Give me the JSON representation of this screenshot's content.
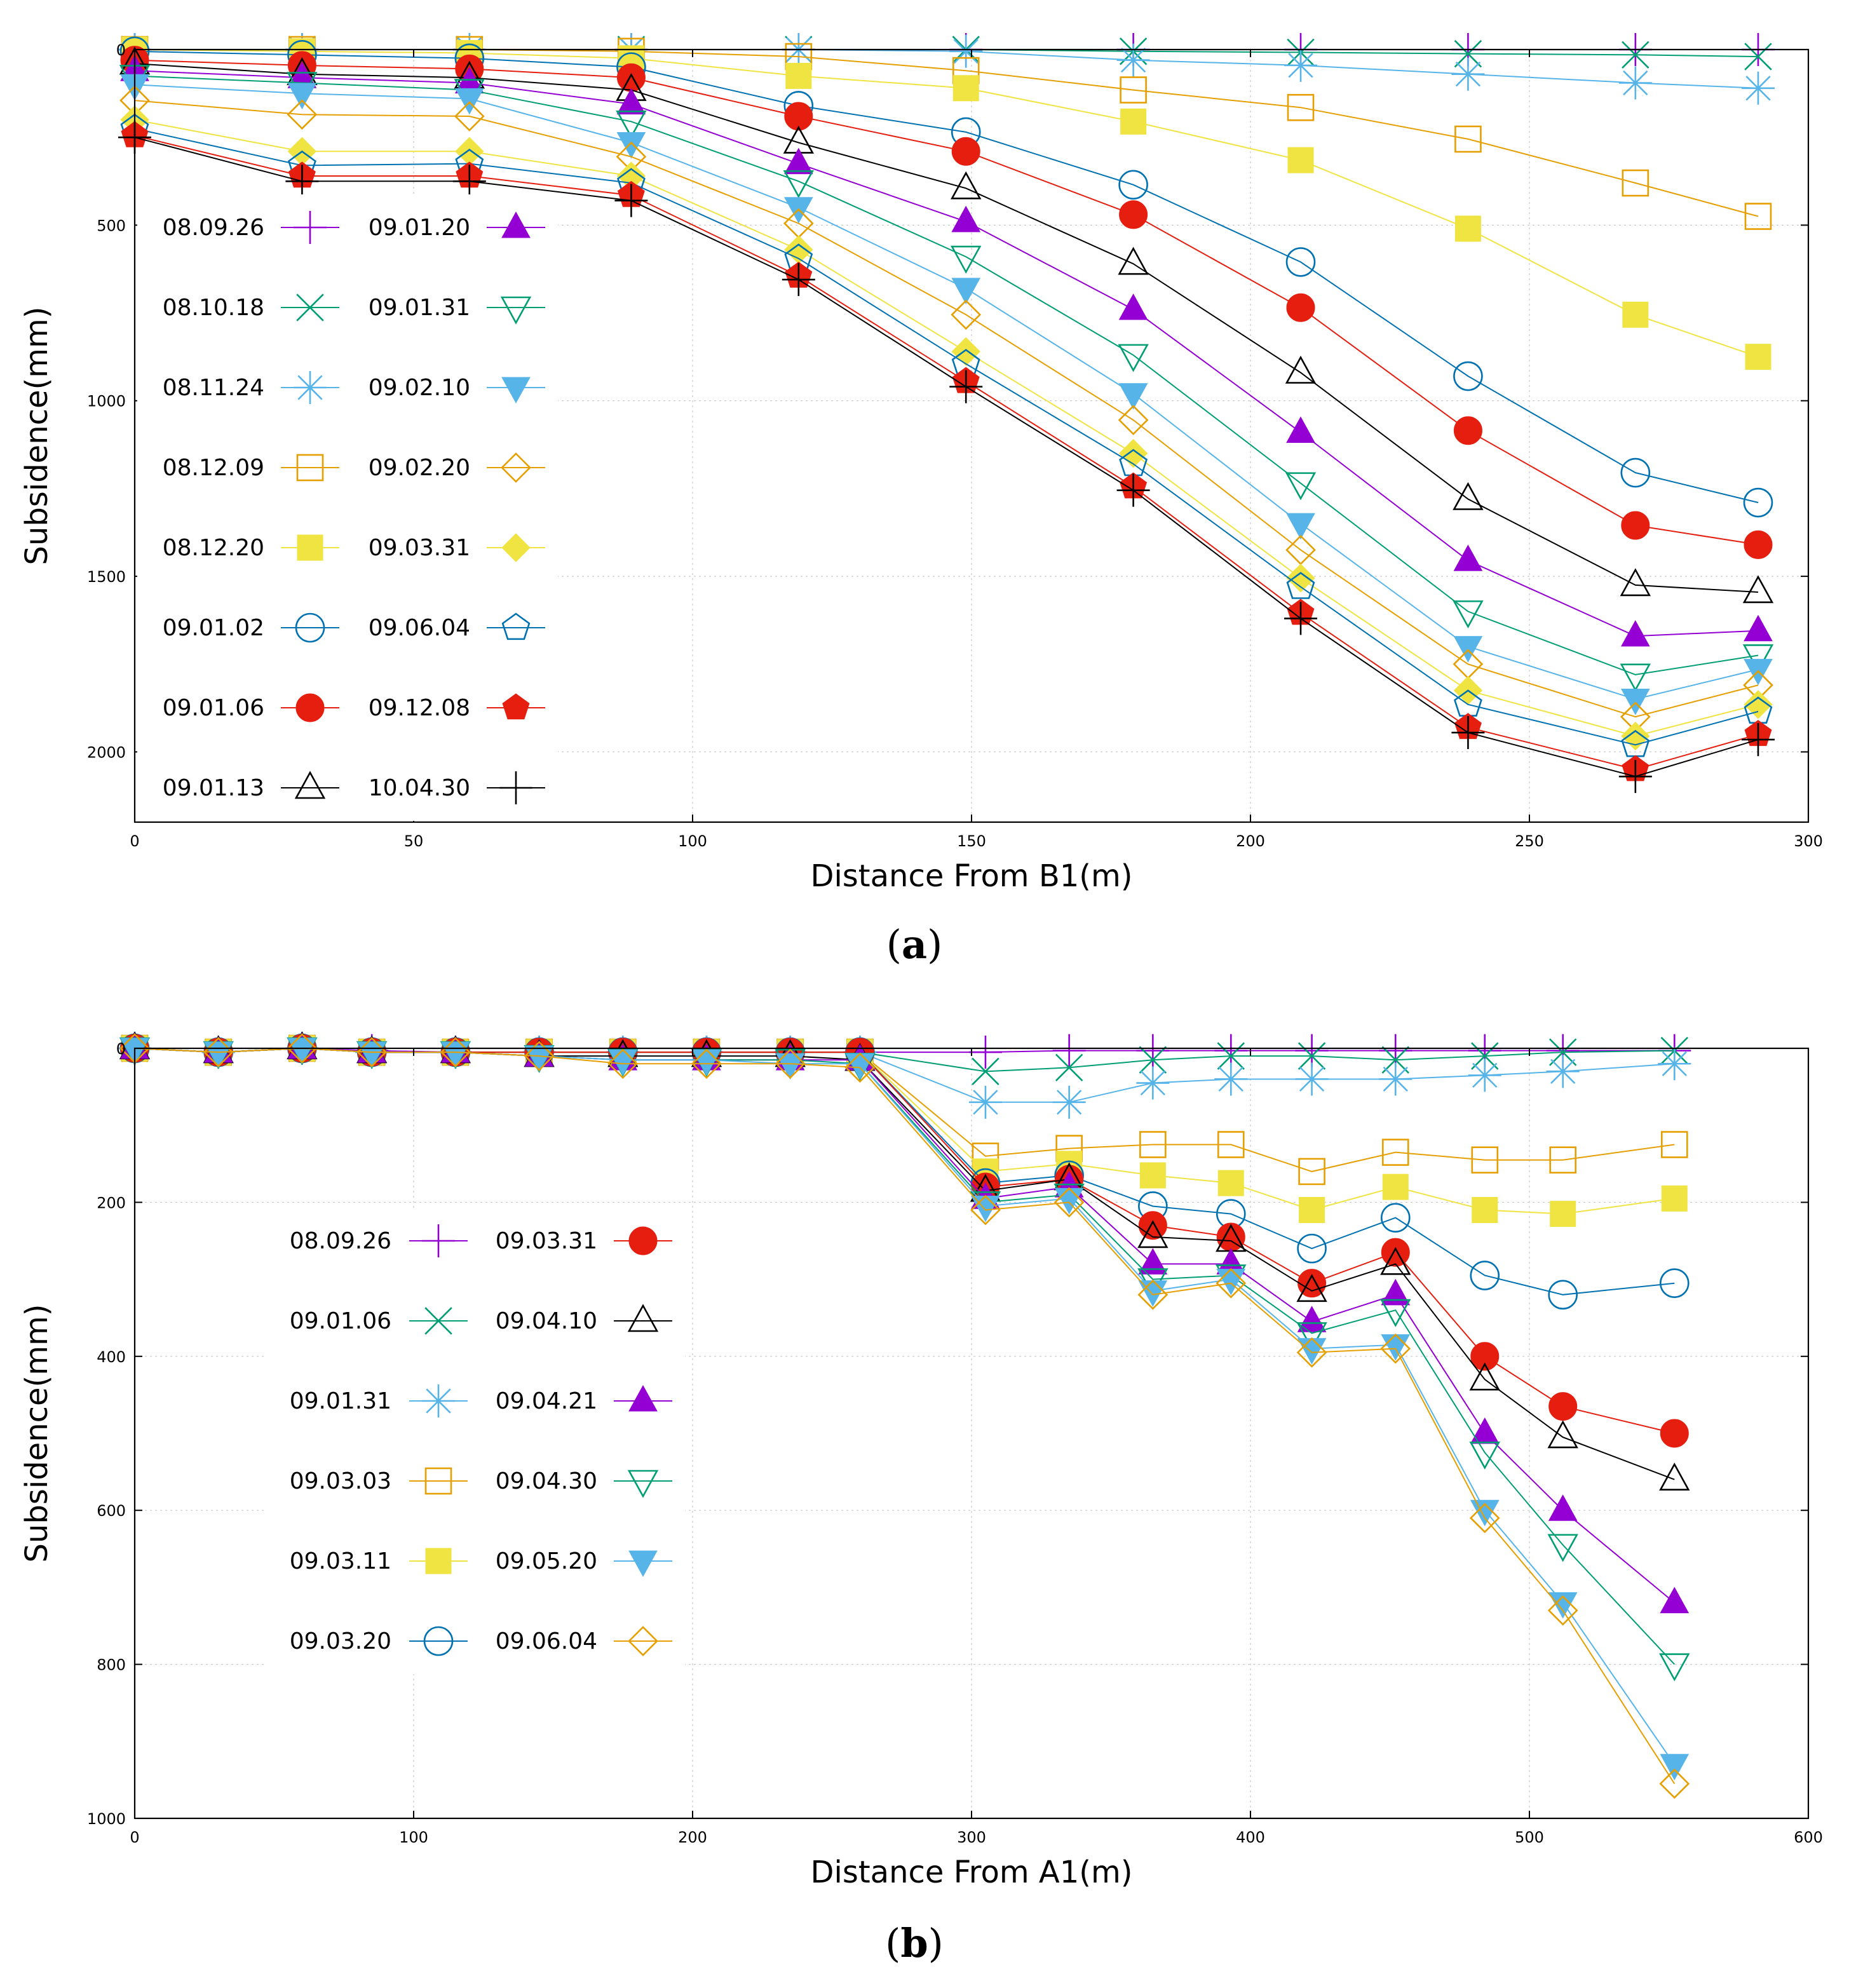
{
  "chart_data": [
    {
      "type": "line",
      "caption_letter": "a",
      "xlabel": "Distance From B1(m)",
      "ylabel": "Subsidence(mm)",
      "xlim": [
        0,
        300
      ],
      "ylim": [
        2200,
        0
      ],
      "y_inverted": true,
      "grid": true,
      "legend_position": "left",
      "xticks": [
        0,
        50,
        100,
        150,
        200,
        250,
        300
      ],
      "yticks": [
        0,
        500,
        1000,
        1500,
        2000
      ],
      "x": [
        0,
        30,
        60,
        89,
        119,
        149,
        179,
        209,
        239,
        269,
        291
      ],
      "series": [
        {
          "name": "08.09.26",
          "color": "#9400d3",
          "marker": "plus",
          "values": [
            0,
            0,
            0,
            0,
            0,
            0,
            0,
            0,
            0,
            0,
            0
          ]
        },
        {
          "name": "08.10.18",
          "color": "#009e73",
          "marker": "x",
          "values": [
            0,
            0,
            0,
            0,
            0,
            0,
            5,
            8,
            12,
            15,
            20
          ]
        },
        {
          "name": "08.11.24",
          "color": "#56b4e9",
          "marker": "star",
          "values": [
            0,
            0,
            0,
            0,
            0,
            5,
            30,
            45,
            70,
            95,
            110
          ]
        },
        {
          "name": "08.12.09",
          "color": "#e69f00",
          "marker": "square-open",
          "values": [
            0,
            0,
            0,
            5,
            20,
            60,
            115,
            165,
            255,
            380,
            475
          ]
        },
        {
          "name": "08.12.20",
          "color": "#f0e442",
          "marker": "square-filled",
          "values": [
            0,
            5,
            10,
            25,
            75,
            110,
            205,
            315,
            510,
            755,
            875
          ]
        },
        {
          "name": "09.01.02",
          "color": "#0072b2",
          "marker": "circle-open",
          "values": [
            5,
            15,
            25,
            50,
            160,
            235,
            385,
            605,
            930,
            1205,
            1290
          ]
        },
        {
          "name": "09.01.06",
          "color": "#e51e10",
          "marker": "circle-filled",
          "values": [
            30,
            45,
            55,
            80,
            190,
            290,
            470,
            735,
            1085,
            1355,
            1410
          ]
        },
        {
          "name": "09.01.13",
          "color": "#000000",
          "marker": "triangle-open",
          "values": [
            40,
            70,
            80,
            115,
            265,
            395,
            610,
            920,
            1280,
            1525,
            1545
          ]
        },
        {
          "name": "09.01.20",
          "color": "#9400d3",
          "marker": "triangle-filled",
          "values": [
            60,
            80,
            95,
            155,
            325,
            490,
            740,
            1090,
            1455,
            1670,
            1655
          ]
        },
        {
          "name": "09.01.31",
          "color": "#009e73",
          "marker": "triangle-down-open",
          "values": [
            75,
            95,
            115,
            205,
            375,
            590,
            870,
            1235,
            1600,
            1780,
            1725
          ]
        },
        {
          "name": "09.02.10",
          "color": "#56b4e9",
          "marker": "triangle-down-filled",
          "values": [
            100,
            125,
            140,
            265,
            450,
            680,
            980,
            1350,
            1700,
            1850,
            1765
          ]
        },
        {
          "name": "09.02.20",
          "color": "#e69f00",
          "marker": "diamond-open",
          "values": [
            145,
            185,
            190,
            305,
            495,
            755,
            1055,
            1425,
            1750,
            1900,
            1810
          ]
        },
        {
          "name": "09.03.31",
          "color": "#f0e442",
          "marker": "diamond-filled",
          "values": [
            200,
            290,
            290,
            360,
            570,
            860,
            1150,
            1505,
            1825,
            1955,
            1865
          ]
        },
        {
          "name": "09.06.04",
          "color": "#0072b2",
          "marker": "pentagon-open",
          "values": [
            225,
            330,
            325,
            380,
            595,
            895,
            1180,
            1530,
            1865,
            1980,
            1885
          ]
        },
        {
          "name": "09.12.08",
          "color": "#e51e10",
          "marker": "pentagon-filled",
          "values": [
            245,
            360,
            360,
            415,
            645,
            945,
            1245,
            1605,
            1930,
            2050,
            1950
          ]
        },
        {
          "name": "10.04.30",
          "color": "#000000",
          "marker": "plus",
          "values": [
            250,
            375,
            375,
            430,
            655,
            960,
            1255,
            1620,
            1945,
            2070,
            1965
          ]
        }
      ]
    },
    {
      "type": "line",
      "caption_letter": "b",
      "xlabel": "Distance From A1(m)",
      "ylabel": "Subsidence(mm)",
      "xlim": [
        0,
        600
      ],
      "ylim": [
        1000,
        0
      ],
      "y_inverted": true,
      "grid": true,
      "legend_position": "left",
      "xticks": [
        0,
        100,
        200,
        300,
        400,
        500,
        600
      ],
      "yticks": [
        0,
        200,
        400,
        600,
        800,
        1000
      ],
      "x": [
        0,
        30,
        60,
        85,
        115,
        145,
        175,
        205,
        235,
        260,
        305,
        335,
        365,
        393,
        422,
        452,
        484,
        512,
        552
      ],
      "series": [
        {
          "name": "08.09.26",
          "color": "#9400d3",
          "marker": "plus",
          "values": [
            0,
            5,
            0,
            3,
            5,
            5,
            5,
            5,
            5,
            5,
            5,
            3,
            3,
            3,
            3,
            3,
            3,
            3,
            3
          ]
        },
        {
          "name": "09.01.06",
          "color": "#009e73",
          "marker": "x",
          "values": [
            0,
            5,
            0,
            5,
            5,
            5,
            5,
            5,
            5,
            5,
            30,
            25,
            15,
            10,
            10,
            15,
            10,
            5,
            3
          ]
        },
        {
          "name": "09.01.31",
          "color": "#56b4e9",
          "marker": "star",
          "values": [
            0,
            5,
            0,
            5,
            5,
            5,
            5,
            5,
            5,
            5,
            70,
            70,
            45,
            40,
            40,
            40,
            35,
            30,
            20
          ]
        },
        {
          "name": "09.03.03",
          "color": "#e69f00",
          "marker": "square-open",
          "values": [
            0,
            5,
            0,
            5,
            5,
            5,
            5,
            5,
            5,
            5,
            140,
            130,
            125,
            125,
            160,
            135,
            145,
            145,
            125
          ]
        },
        {
          "name": "09.03.11",
          "color": "#f0e442",
          "marker": "square-filled",
          "values": [
            0,
            5,
            0,
            5,
            5,
            5,
            5,
            5,
            5,
            5,
            160,
            150,
            165,
            175,
            210,
            180,
            210,
            215,
            195
          ]
        },
        {
          "name": "09.03.20",
          "color": "#0072b2",
          "marker": "circle-open",
          "values": [
            0,
            5,
            0,
            5,
            5,
            5,
            5,
            5,
            5,
            5,
            175,
            165,
            205,
            215,
            260,
            220,
            295,
            320,
            305
          ]
        },
        {
          "name": "09.03.31",
          "color": "#e51e10",
          "marker": "circle-filled",
          "values": [
            0,
            5,
            0,
            5,
            5,
            5,
            5,
            5,
            5,
            5,
            180,
            170,
            230,
            245,
            305,
            265,
            400,
            465,
            500
          ]
        },
        {
          "name": "09.04.10",
          "color": "#000000",
          "marker": "triangle-open",
          "values": [
            0,
            5,
            0,
            5,
            5,
            10,
            10,
            10,
            10,
            15,
            185,
            170,
            245,
            250,
            315,
            280,
            430,
            505,
            560
          ]
        },
        {
          "name": "09.04.21",
          "color": "#9400d3",
          "marker": "triangle-filled",
          "values": [
            0,
            5,
            0,
            5,
            5,
            10,
            15,
            15,
            15,
            15,
            195,
            180,
            280,
            280,
            355,
            320,
            500,
            600,
            720
          ]
        },
        {
          "name": "09.04.30",
          "color": "#009e73",
          "marker": "triangle-down-open",
          "values": [
            0,
            5,
            0,
            5,
            5,
            10,
            15,
            15,
            15,
            20,
            200,
            190,
            300,
            295,
            370,
            340,
            525,
            645,
            800
          ]
        },
        {
          "name": "09.05.20",
          "color": "#56b4e9",
          "marker": "triangle-down-filled",
          "values": [
            0,
            5,
            0,
            5,
            5,
            10,
            15,
            15,
            20,
            20,
            205,
            195,
            315,
            300,
            390,
            385,
            600,
            720,
            930
          ]
        },
        {
          "name": "09.06.04",
          "color": "#e69f00",
          "marker": "diamond-open",
          "values": [
            0,
            5,
            0,
            5,
            5,
            10,
            20,
            20,
            20,
            25,
            210,
            200,
            320,
            305,
            395,
            390,
            610,
            730,
            955
          ]
        }
      ]
    }
  ]
}
